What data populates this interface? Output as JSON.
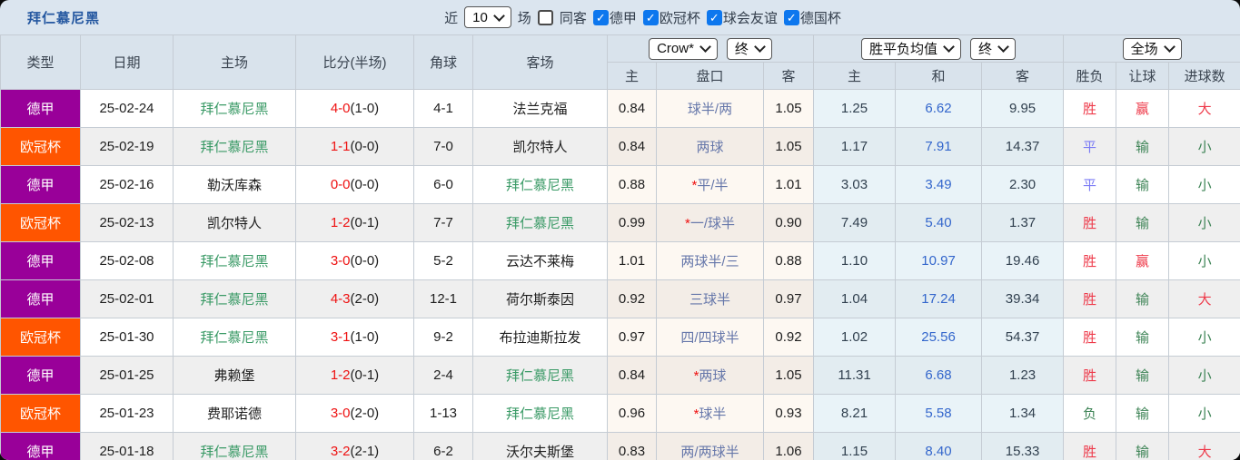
{
  "title": "拜仁慕尼黑",
  "icons": {
    "check": "✓",
    "star": "*"
  },
  "controls": {
    "recent_label": "近",
    "count_select": "10",
    "matches_label": "场",
    "same_away": {
      "label": "同客",
      "checked": false
    },
    "leagues": [
      {
        "label": "德甲",
        "checked": true
      },
      {
        "label": "欧冠杯",
        "checked": true
      },
      {
        "label": "球会友谊",
        "checked": true
      },
      {
        "label": "德国杯",
        "checked": true
      }
    ]
  },
  "table": {
    "headers": {
      "type": "类型",
      "date": "日期",
      "home": "主场",
      "score": "比分(半场)",
      "corner": "角球",
      "away": "客场",
      "crown_home": "主",
      "crown_handicap": "盘口",
      "crown_away": "客",
      "avg_home": "主",
      "avg_draw": "和",
      "avg_away": "客",
      "result_winloss": "胜负",
      "result_handicap": "让球",
      "result_goals": "进球数"
    },
    "selects": {
      "bookmaker": "Crow*",
      "bookmaker_state": "终",
      "avg": "胜平负均值",
      "avg_state": "终",
      "period": "全场"
    },
    "league_colors": {
      "德甲": "#990099",
      "欧冠杯": "#ff5500"
    },
    "value_colors": {
      "胜": "#ee3a4a",
      "平": "#7b7bf5",
      "负": "#3e8456",
      "赢": "#ee3a4a",
      "输": "#3e8456",
      "大": "#ee3a4a",
      "小": "#3e8456"
    },
    "team_highlight_color": "#3a9a66",
    "rows": [
      {
        "league": "德甲",
        "date": "25-02-24",
        "home": "拜仁慕尼黑",
        "home_hl": true,
        "score": "4-0",
        "half": "(1-0)",
        "corner": "4-1",
        "away": "法兰克福",
        "away_hl": false,
        "crown_home": "0.84",
        "handicap": "球半/两",
        "handicap_star": false,
        "crown_away": "1.05",
        "avg_home": "1.25",
        "avg_draw": "6.62",
        "avg_away": "9.95",
        "result": "胜",
        "result_handicap": "赢",
        "result_goals": "大"
      },
      {
        "league": "欧冠杯",
        "date": "25-02-19",
        "home": "拜仁慕尼黑",
        "home_hl": true,
        "score": "1-1",
        "half": "(0-0)",
        "corner": "7-0",
        "away": "凯尔特人",
        "away_hl": false,
        "crown_home": "0.84",
        "handicap": "两球",
        "handicap_star": false,
        "crown_away": "1.05",
        "avg_home": "1.17",
        "avg_draw": "7.91",
        "avg_away": "14.37",
        "result": "平",
        "result_handicap": "输",
        "result_goals": "小"
      },
      {
        "league": "德甲",
        "date": "25-02-16",
        "home": "勒沃库森",
        "home_hl": false,
        "score": "0-0",
        "half": "(0-0)",
        "corner": "6-0",
        "away": "拜仁慕尼黑",
        "away_hl": true,
        "crown_home": "0.88",
        "handicap": "平/半",
        "handicap_star": true,
        "crown_away": "1.01",
        "avg_home": "3.03",
        "avg_draw": "3.49",
        "avg_away": "2.30",
        "result": "平",
        "result_handicap": "输",
        "result_goals": "小"
      },
      {
        "league": "欧冠杯",
        "date": "25-02-13",
        "home": "凯尔特人",
        "home_hl": false,
        "score": "1-2",
        "half": "(0-1)",
        "corner": "7-7",
        "away": "拜仁慕尼黑",
        "away_hl": true,
        "crown_home": "0.99",
        "handicap": "一/球半",
        "handicap_star": true,
        "crown_away": "0.90",
        "avg_home": "7.49",
        "avg_draw": "5.40",
        "avg_away": "1.37",
        "result": "胜",
        "result_handicap": "输",
        "result_goals": "小"
      },
      {
        "league": "德甲",
        "date": "25-02-08",
        "home": "拜仁慕尼黑",
        "home_hl": true,
        "score": "3-0",
        "half": "(0-0)",
        "corner": "5-2",
        "away": "云达不莱梅",
        "away_hl": false,
        "crown_home": "1.01",
        "handicap": "两球半/三",
        "handicap_star": false,
        "crown_away": "0.88",
        "avg_home": "1.10",
        "avg_draw": "10.97",
        "avg_away": "19.46",
        "result": "胜",
        "result_handicap": "赢",
        "result_goals": "小"
      },
      {
        "league": "德甲",
        "date": "25-02-01",
        "home": "拜仁慕尼黑",
        "home_hl": true,
        "score": "4-3",
        "half": "(2-0)",
        "corner": "12-1",
        "away": "荷尔斯泰因",
        "away_hl": false,
        "crown_home": "0.92",
        "handicap": "三球半",
        "handicap_star": false,
        "crown_away": "0.97",
        "avg_home": "1.04",
        "avg_draw": "17.24",
        "avg_away": "39.34",
        "result": "胜",
        "result_handicap": "输",
        "result_goals": "大"
      },
      {
        "league": "欧冠杯",
        "date": "25-01-30",
        "home": "拜仁慕尼黑",
        "home_hl": true,
        "score": "3-1",
        "half": "(1-0)",
        "corner": "9-2",
        "away": "布拉迪斯拉发",
        "away_hl": false,
        "crown_home": "0.97",
        "handicap": "四/四球半",
        "handicap_star": false,
        "crown_away": "0.92",
        "avg_home": "1.02",
        "avg_draw": "25.56",
        "avg_away": "54.37",
        "result": "胜",
        "result_handicap": "输",
        "result_goals": "小"
      },
      {
        "league": "德甲",
        "date": "25-01-25",
        "home": "弗赖堡",
        "home_hl": false,
        "score": "1-2",
        "half": "(0-1)",
        "corner": "2-4",
        "away": "拜仁慕尼黑",
        "away_hl": true,
        "crown_home": "0.84",
        "handicap": "两球",
        "handicap_star": true,
        "crown_away": "1.05",
        "avg_home": "11.31",
        "avg_draw": "6.68",
        "avg_away": "1.23",
        "result": "胜",
        "result_handicap": "输",
        "result_goals": "小"
      },
      {
        "league": "欧冠杯",
        "date": "25-01-23",
        "home": "费耶诺德",
        "home_hl": false,
        "score": "3-0",
        "half": "(2-0)",
        "corner": "1-13",
        "away": "拜仁慕尼黑",
        "away_hl": true,
        "crown_home": "0.96",
        "handicap": "球半",
        "handicap_star": true,
        "crown_away": "0.93",
        "avg_home": "8.21",
        "avg_draw": "5.58",
        "avg_away": "1.34",
        "result": "负",
        "result_handicap": "输",
        "result_goals": "小"
      },
      {
        "league": "德甲",
        "date": "25-01-18",
        "home": "拜仁慕尼黑",
        "home_hl": true,
        "score": "3-2",
        "half": "(2-1)",
        "corner": "6-2",
        "away": "沃尔夫斯堡",
        "away_hl": false,
        "crown_home": "0.83",
        "handicap": "两/两球半",
        "handicap_star": false,
        "crown_away": "1.06",
        "avg_home": "1.15",
        "avg_draw": "8.40",
        "avg_away": "15.33",
        "result": "胜",
        "result_handicap": "输",
        "result_goals": "大"
      }
    ]
  }
}
